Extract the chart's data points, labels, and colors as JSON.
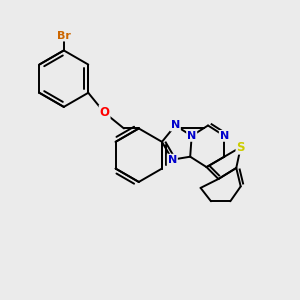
{
  "bg_color": "#ebebeb",
  "bond_color": "#000000",
  "bond_width": 1.4,
  "atom_colors": {
    "Br": "#cc6600",
    "O": "#ff0000",
    "N": "#0000cc",
    "S": "#cccc00",
    "C": "#000000"
  },
  "figsize": [
    3.0,
    3.0
  ],
  "dpi": 100,
  "xlim": [
    0,
    10
  ],
  "ylim": [
    0,
    10
  ]
}
